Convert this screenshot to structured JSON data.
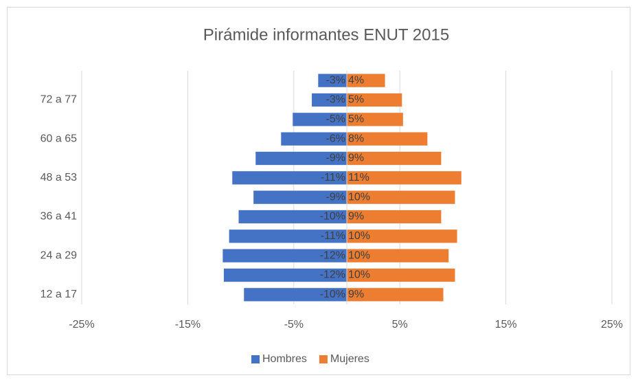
{
  "chart_data": {
    "type": "bar",
    "orientation": "horizontal",
    "title": "Pirámide informantes ENUT 2015",
    "categories": [
      "12 a 17",
      null,
      "24 a 29",
      null,
      "36 a 41",
      null,
      "48 a 53",
      null,
      "60 a 65",
      null,
      "72 a 77",
      null
    ],
    "series": [
      {
        "name": "Hombres",
        "color": "#4472c4",
        "values": [
          -9.7,
          -11.6,
          -11.7,
          -11.1,
          -10.2,
          -8.8,
          -10.8,
          -8.6,
          -6.2,
          -5.1,
          -3.3,
          -2.7
        ],
        "value_labels": [
          "-10%",
          "-12%",
          "-12%",
          "-11%",
          "-10%",
          "-9%",
          "-11%",
          "-9%",
          "-6%",
          "-5%",
          "-3%",
          "-3%"
        ]
      },
      {
        "name": "Mujeres",
        "color": "#ed7d31",
        "values": [
          9.1,
          10.2,
          9.6,
          10.4,
          8.9,
          10.2,
          10.8,
          8.9,
          7.6,
          5.3,
          5.2,
          3.6
        ],
        "value_labels": [
          "9%",
          "10%",
          "10%",
          "10%",
          "9%",
          "10%",
          "11%",
          "9%",
          "8%",
          "5%",
          "5%",
          "4%"
        ]
      }
    ],
    "xlim": [
      -25,
      25
    ],
    "xticks": [
      {
        "value": -25,
        "label": "-25%"
      },
      {
        "value": -15,
        "label": "-15%"
      },
      {
        "value": -5,
        "label": "-5%"
      },
      {
        "value": 5,
        "label": "5%"
      },
      {
        "value": 15,
        "label": "15%"
      },
      {
        "value": 25,
        "label": "25%"
      }
    ],
    "grid": true,
    "legend": "bottom"
  }
}
